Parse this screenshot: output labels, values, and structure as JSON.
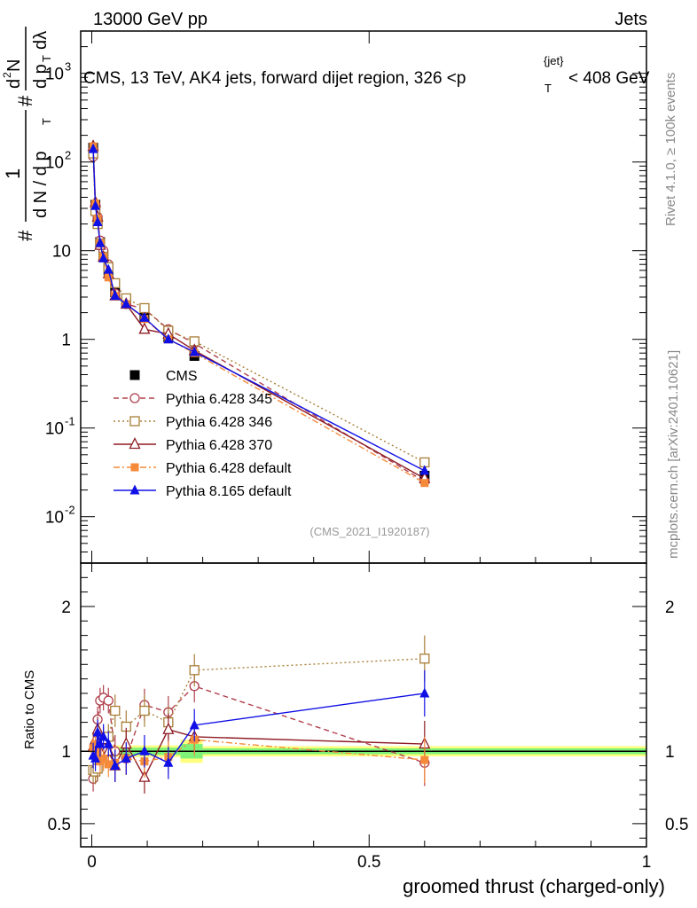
{
  "header": {
    "left": "13000 GeV pp",
    "right": "Jets"
  },
  "chart_data": {
    "type": "line",
    "title": "CMS, 13 TeV, AK4 jets, forward dijet region, 326 <p",
    "title_sub": "T",
    "title_sup": "{jet}",
    "title_end": "< 408 GeV",
    "ylabel_top": {
      "hash1": "#",
      "one": "1",
      "dN": "d N / d p",
      "dN_sub": "T",
      "hash2": "#",
      "d2N": "d",
      "d2N_sup": "2",
      "d2N_rest": "N",
      "dpT": "d p",
      "dpT_sub": "T",
      "dlam": "dλ"
    },
    "xlabel": "groomed thrust (charged-only)",
    "ylabel_ratio": "Ratio to CMS",
    "x_ticks": [
      "0",
      "0.5",
      "1"
    ],
    "y_ticks_main": [
      {
        "base": "10",
        "exp": "-2",
        "value": 0.01
      },
      {
        "base": "10",
        "exp": "-1",
        "value": 0.1
      },
      {
        "base": "1",
        "exp": "",
        "value": 1
      },
      {
        "base": "10",
        "exp": "",
        "value": 10
      },
      {
        "base": "10",
        "exp": "2",
        "value": 100
      },
      {
        "base": "10",
        "exp": "3",
        "value": 1000
      }
    ],
    "y_ticks_ratio": [
      "0.5",
      "1",
      "2"
    ],
    "xlim": [
      -0.02,
      1.0
    ],
    "ylim_main": [
      0.003,
      3000
    ],
    "ylim_ratio": [
      0.34,
      2.3
    ],
    "side_text_rivet": "Rivet 4.1.0, ≥ 100k events",
    "side_text_mcplots": "mcplots.cern.ch [arXiv:2401.10621]",
    "watermark": "(CMS_2021_I1920187)",
    "legend_position": "center-left",
    "bin_edges": [
      0,
      0.0045,
      0.0085,
      0.0125,
      0.0175,
      0.025,
      0.035,
      0.05,
      0.075,
      0.11,
      0.16,
      0.2,
      1.0
    ],
    "bin_centers": [
      0.0025,
      0.0065,
      0.0105,
      0.015,
      0.021,
      0.03,
      0.042,
      0.062,
      0.095,
      0.138,
      0.185,
      0.6
    ],
    "data": {
      "name": "CMS",
      "values": [
        145,
        33,
        22,
        12.5,
        8.8,
        6.0,
        3.4,
        2.6,
        1.75,
        1.05,
        0.65,
        0.029
      ],
      "ratio_band_halfwidth": [
        0.04,
        0.04,
        0.04,
        0.04,
        0.04,
        0.04,
        0.04,
        0.04,
        0.04,
        0.04,
        0.08,
        0.035
      ],
      "ratio_inner_halfwidth": [
        0.025,
        0.025,
        0.025,
        0.025,
        0.025,
        0.025,
        0.025,
        0.025,
        0.025,
        0.025,
        0.05,
        0.02
      ]
    },
    "series": [
      {
        "name": "Pythia 6.428 345",
        "color": "#b0404d",
        "dash": "6,4",
        "marker": "circle-open",
        "values": [
          115,
          33,
          24,
          13,
          10,
          7,
          3.3,
          2.5,
          2.2,
          1.3,
          0.9,
          0.025
        ],
        "ratio": [
          0.81,
          1.02,
          1.22,
          1.35,
          1.37,
          1.35,
          1.0,
          0.95,
          1.32,
          1.27,
          1.45,
          0.92
        ]
      },
      {
        "name": "Pythia 6.428 346",
        "color": "#a87e37",
        "dash": "2,3",
        "marker": "square-open",
        "values": [
          125,
          28,
          20,
          12,
          8.5,
          6.5,
          4.3,
          2.9,
          2.25,
          1.25,
          0.95,
          0.041
        ],
        "ratio": [
          0.87,
          0.86,
          0.88,
          0.98,
          1.02,
          1.1,
          1.28,
          1.17,
          1.28,
          1.2,
          1.56,
          1.64
        ]
      },
      {
        "name": "Pythia 6.428 370",
        "color": "#8e1c24",
        "dash": "",
        "marker": "triangle-open",
        "values": [
          150,
          35,
          24,
          11.5,
          8.5,
          5.5,
          3.1,
          2.5,
          1.3,
          1.15,
          0.75,
          0.027
        ],
        "ratio": [
          1.03,
          1.08,
          1.15,
          1.0,
          1.08,
          1.0,
          0.9,
          1.05,
          0.82,
          1.15,
          1.1,
          1.05
        ]
      },
      {
        "name": "Pythia 6.428 default",
        "color": "#f58a3a",
        "dash": "7,3,2,3",
        "marker": "square-filled",
        "values": [
          150,
          34,
          23,
          12,
          8.5,
          5.0,
          3.1,
          2.5,
          1.7,
          1.0,
          0.7,
          0.024
        ],
        "ratio": [
          1.02,
          1.05,
          1.0,
          0.93,
          0.95,
          0.91,
          0.92,
          0.95,
          0.93,
          0.96,
          1.08,
          0.94
        ]
      },
      {
        "name": "Pythia 8.165 default",
        "color": "#1010e6",
        "dash": "",
        "marker": "triangle-filled",
        "values": [
          140,
          32,
          21,
          12.2,
          8.2,
          6.1,
          3.1,
          2.5,
          1.75,
          1.0,
          0.72,
          0.033
        ],
        "ratio": [
          0.97,
          0.95,
          1.13,
          1.05,
          1.1,
          1.05,
          0.9,
          0.95,
          1.0,
          0.92,
          1.18,
          1.4
        ]
      }
    ]
  }
}
